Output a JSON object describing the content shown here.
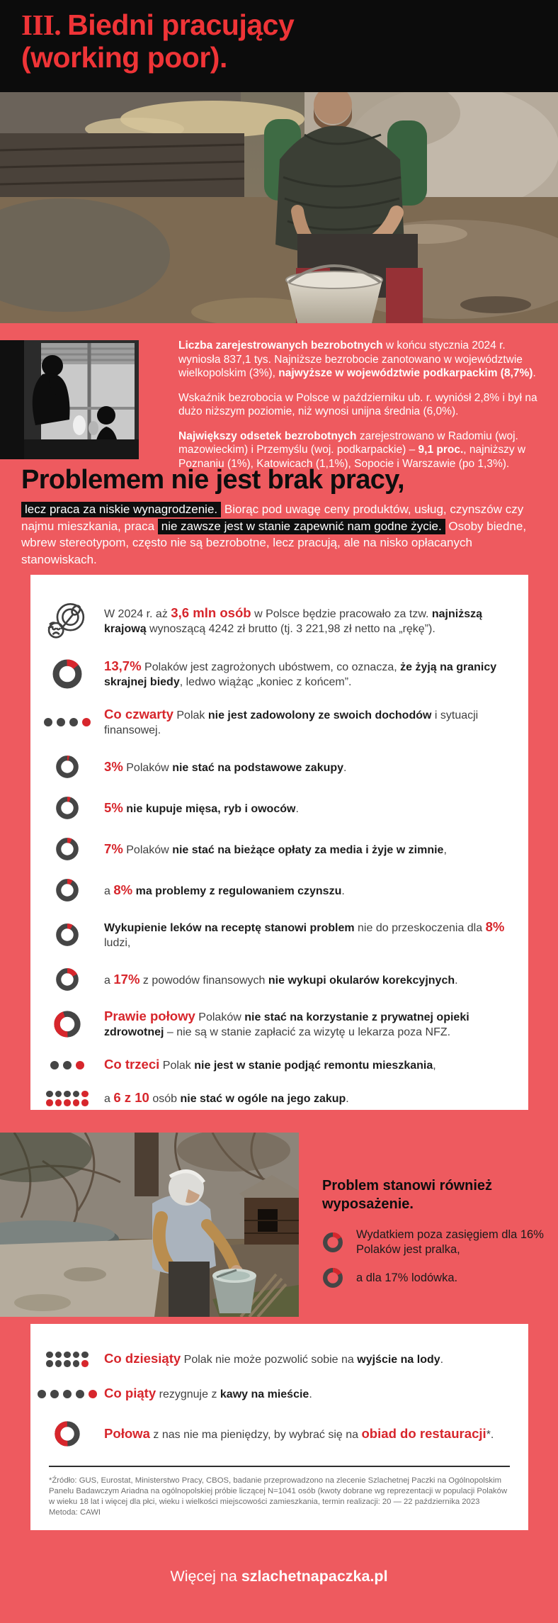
{
  "colors": {
    "background_red": "#ee5a5f",
    "accent_red": "#d7262c",
    "title_red": "#ef3437",
    "header_black": "#0c0c0c",
    "card_white": "#ffffff"
  },
  "header": {
    "numeral": "III.",
    "line1": "Biedni pracujący",
    "line2": "(working poor)."
  },
  "unemployment": {
    "paragraphs": [
      [
        {
          "t": "Liczba zarejestrowanych bezrobotnych",
          "s": "b"
        },
        {
          "t": " w końcu stycznia 2024 r. wyniosła 837,1 tys. Najniższe bezrobocie zanotowano w województwie wielkopolskim (3%), "
        },
        {
          "t": "najwyższe w województwie podkarpackim (8,7%)",
          "s": "b"
        },
        {
          "t": "."
        }
      ],
      [
        {
          "t": "Wskaźnik bezrobocia w Polsce w październiku ub. r. wyniósł 2,8% i był na dużo niższym poziomie, niż wynosi unijna średnia (6,0%)."
        }
      ],
      [
        {
          "t": "Największy odsetek bezrobotnych",
          "s": "b"
        },
        {
          "t": " zarejestrowano w Radomiu (woj. mazowieckim) i Przemyślu (woj. podkarpackie) – "
        },
        {
          "t": "9,1 proc.",
          "s": "b"
        },
        {
          "t": ", najniższy w Poznaniu (1%), Katowicach (1,1%), Sopocie i Warszawie (po 1,3%)."
        }
      ]
    ]
  },
  "intro": {
    "heading": "Problemem nie jest brak pracy,",
    "body": [
      {
        "t": "lecz praca za niskie wynagrodzenie.",
        "s": "hl"
      },
      {
        "t": " Biorąc pod uwagę ceny produktów, usług, czynszów czy najmu mieszkania, praca "
      },
      {
        "t": "nie zawsze jest w stanie zapewnić nam godne życie.",
        "s": "hl"
      },
      {
        "t": " Osoby biedne, wbrew stereotypom, często nie są bezrobotne, lecz pracują, ale na nisko opłacanych stanowiskach."
      }
    ]
  },
  "card1": {
    "items": [
      {
        "icon": {
          "type": "plate"
        },
        "runs": [
          {
            "t": "W 2024 r. aż "
          },
          {
            "t": "3,6 mln osób",
            "s": "r"
          },
          {
            "t": " w Polsce będzie pracowało za tzw. "
          },
          {
            "t": "najniższą krajową",
            "s": "b"
          },
          {
            "t": " wynoszącą 4242 zł brutto (tj. 3 221,98 zł netto na „rękę”)."
          }
        ]
      },
      {
        "icon": {
          "type": "donut",
          "pct": 14,
          "size": 44
        },
        "runs": [
          {
            "t": "13,7%",
            "s": "r"
          },
          {
            "t": " Polaków jest zagrożonych ubóstwem, co oznacza, "
          },
          {
            "t": "że żyją na granicy skrajnej biedy",
            "s": "b"
          },
          {
            "t": ", ledwo wiążąc „koniec z końcem”."
          }
        ]
      },
      {
        "icon": {
          "type": "dots",
          "total": 4,
          "red": 1
        },
        "runs": [
          {
            "t": "Co czwarty",
            "s": "r"
          },
          {
            "t": " Polak "
          },
          {
            "t": "nie jest zadowolony ze swoich dochodów",
            "s": "b"
          },
          {
            "t": " i sytuacji finansowej."
          }
        ]
      },
      {
        "icon": {
          "type": "donut",
          "pct": 3,
          "size": 34
        },
        "runs": [
          {
            "t": "3%",
            "s": "r"
          },
          {
            "t": " Polaków "
          },
          {
            "t": "nie stać na podstawowe zakupy",
            "s": "b"
          },
          {
            "t": "."
          }
        ]
      },
      {
        "icon": {
          "type": "donut",
          "pct": 5,
          "size": 34
        },
        "runs": [
          {
            "t": "5%",
            "s": "r"
          },
          {
            "t": " "
          },
          {
            "t": "nie kupuje mięsa, ryb i owoców",
            "s": "b"
          },
          {
            "t": "."
          }
        ]
      },
      {
        "icon": {
          "type": "donut",
          "pct": 7,
          "size": 34
        },
        "runs": [
          {
            "t": "7%",
            "s": "r"
          },
          {
            "t": " Polaków "
          },
          {
            "t": "nie stać na bieżące opłaty za media i żyje w zimnie",
            "s": "b"
          },
          {
            "t": ","
          }
        ]
      },
      {
        "icon": {
          "type": "donut",
          "pct": 8,
          "size": 34
        },
        "runs": [
          {
            "t": "a "
          },
          {
            "t": "8%",
            "s": "r"
          },
          {
            "t": " "
          },
          {
            "t": "ma problemy z regulowaniem czynszu",
            "s": "b"
          },
          {
            "t": "."
          }
        ]
      },
      {
        "icon": {
          "type": "donut",
          "pct": 8,
          "size": 34
        },
        "runs": [
          {
            "t": "Wykupienie leków na receptę stanowi problem",
            "s": "b"
          },
          {
            "t": " nie do przeskoczenia dla "
          },
          {
            "t": "8%",
            "s": "r"
          },
          {
            "t": " ludzi,"
          }
        ]
      },
      {
        "icon": {
          "type": "donut",
          "pct": 17,
          "size": 34
        },
        "runs": [
          {
            "t": "a "
          },
          {
            "t": "17%",
            "s": "r"
          },
          {
            "t": " z powodów finansowych "
          },
          {
            "t": "nie wykupi okularów korekcyjnych",
            "s": "b"
          },
          {
            "t": "."
          }
        ]
      },
      {
        "icon": {
          "type": "donut",
          "pct": 45,
          "size": 40,
          "side": "left"
        },
        "runs": [
          {
            "t": "Prawie połowy",
            "s": "r"
          },
          {
            "t": " Polaków "
          },
          {
            "t": "nie stać na korzystanie z prywatnej opieki zdrowotnej",
            "s": "b"
          },
          {
            "t": " – nie są w stanie zapłacić za wizytę u lekarza poza NFZ."
          }
        ]
      },
      {
        "icon": {
          "type": "dots",
          "total": 3,
          "red": 1
        },
        "runs": [
          {
            "t": "Co trzeci",
            "s": "r"
          },
          {
            "t": " Polak "
          },
          {
            "t": "nie jest w stanie podjąć remontu mieszkania",
            "s": "b"
          },
          {
            "t": ","
          }
        ]
      },
      {
        "icon": {
          "type": "dots",
          "total": 10,
          "red": 6,
          "rows": 2
        },
        "runs": [
          {
            "t": "a "
          },
          {
            "t": "6 z 10",
            "s": "r"
          },
          {
            "t": " osób "
          },
          {
            "t": "nie stać w ogóle na jego zakup",
            "s": "b"
          },
          {
            "t": "."
          }
        ]
      }
    ]
  },
  "equipment": {
    "heading": "Problem stanowi również wyposażenie.",
    "items": [
      {
        "icon": {
          "type": "donut",
          "pct": 16,
          "size": 30
        },
        "runs": [
          {
            "t": "Wydatkiem poza zasięgiem dla 16% Polaków jest pralka,"
          }
        ]
      },
      {
        "icon": {
          "type": "donut",
          "pct": 17,
          "size": 30
        },
        "runs": [
          {
            "t": "a dla 17% lodówka."
          }
        ]
      }
    ]
  },
  "card2": {
    "items": [
      {
        "icon": {
          "type": "dots",
          "total": 10,
          "red": 1,
          "rows": 2
        },
        "runs": [
          {
            "t": "Co dziesiąty",
            "s": "r"
          },
          {
            "t": " Polak nie może pozwolić sobie na "
          },
          {
            "t": "wyjście na lody",
            "s": "b"
          },
          {
            "t": "."
          }
        ]
      },
      {
        "icon": {
          "type": "dots",
          "total": 5,
          "red": 1
        },
        "runs": [
          {
            "t": "Co piąty",
            "s": "r"
          },
          {
            "t": " rezygnuje z "
          },
          {
            "t": "kawy na mieście",
            "s": "b"
          },
          {
            "t": "."
          }
        ]
      },
      {
        "icon": {
          "type": "donut",
          "pct": 50,
          "size": 38,
          "side": "left"
        },
        "runs": [
          {
            "t": "Połowa",
            "s": "r"
          },
          {
            "t": " z nas nie ma pieniędzy, by wybrać się na "
          },
          {
            "t": "obiad do restauracji",
            "s": "r"
          },
          {
            "t": "*."
          }
        ]
      }
    ],
    "footnote": "*Źródło: GUS, Eurostat, Ministerstwo Pracy, CBOS, badanie przeprowadzono na zlecenie Szlachetnej Paczki na Ogólnopolskim Panelu Badawczym Ariadna na ogólnopolskiej próbie liczącej N=1041 osób (kwoty dobrane wg reprezentacji w populacji Polaków w wieku 18 lat i więcej dla płci, wieku i wielkości miejscowości zamieszkania, termin realizacji: 20 — 22 października 2023 Metoda: CAWI"
  },
  "footer": {
    "prefix": "Więcej na ",
    "site": "szlachetnapaczka.pl"
  }
}
